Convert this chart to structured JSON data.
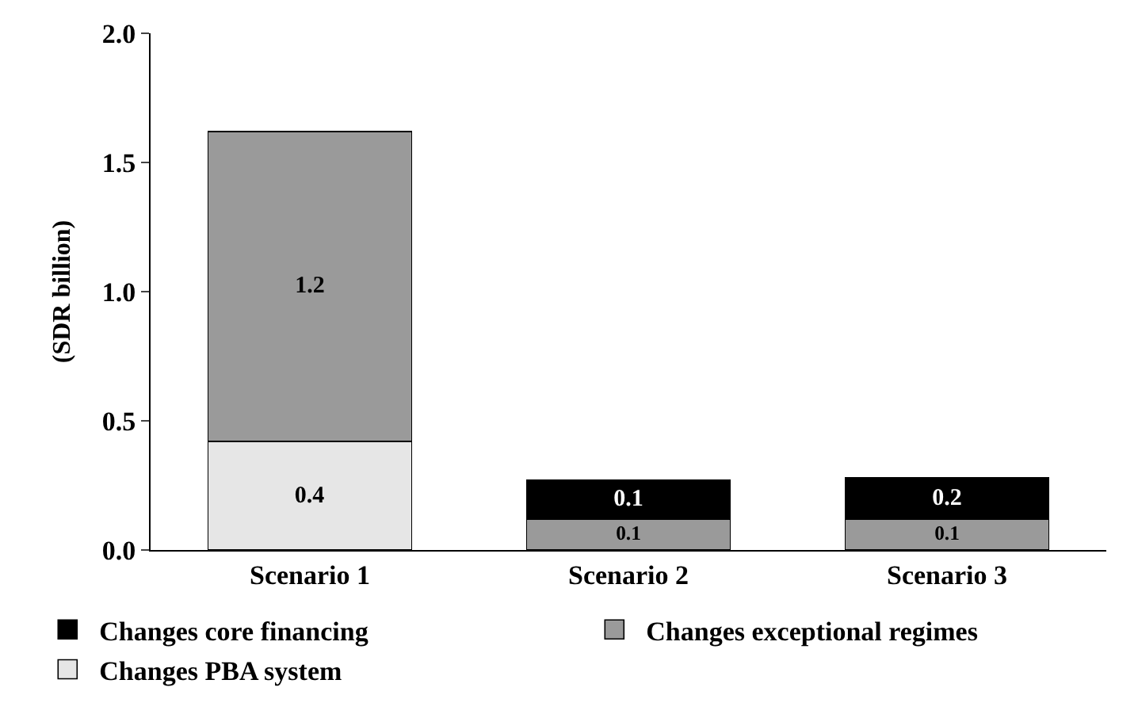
{
  "chart_data": {
    "type": "bar",
    "stacked": true,
    "ylabel": "(SDR billion)",
    "categories": [
      "Scenario 1",
      "Scenario 2",
      "Scenario 3"
    ],
    "ylim": [
      0,
      2.0
    ],
    "yticks": [
      {
        "value": 0,
        "label": "0.0"
      },
      {
        "value": 0.5,
        "label": "0.5"
      },
      {
        "value": 1,
        "label": "1.0"
      },
      {
        "value": 1.5,
        "label": "1.5"
      },
      {
        "value": 2,
        "label": "2.0"
      }
    ],
    "legend": "bottom",
    "series": [
      {
        "name": "Changes PBA system",
        "color": "#e6e6e6",
        "values": [
          0.42,
          null,
          null
        ],
        "value_labels": [
          "0.4",
          null,
          null
        ]
      },
      {
        "name": "Changes exceptional regimes",
        "color": "#9a9a9a",
        "values": [
          1.2,
          0.12,
          0.12
        ],
        "value_labels": [
          "1.2",
          "0.1",
          "0.1"
        ]
      },
      {
        "name": "Changes core financing",
        "color": "#000000",
        "values": [
          null,
          0.15,
          0.16
        ],
        "value_labels": [
          null,
          "0.1",
          "0.2"
        ]
      }
    ]
  }
}
